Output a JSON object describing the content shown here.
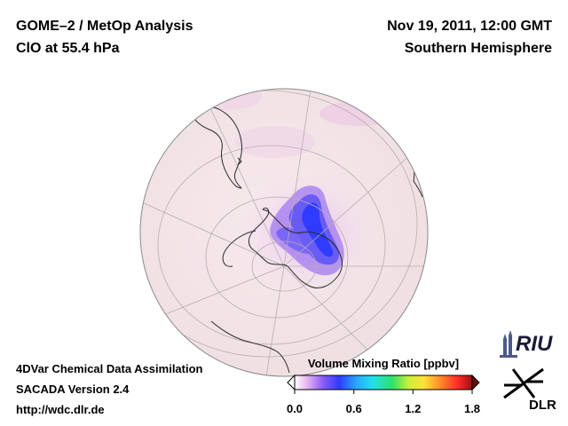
{
  "header": {
    "title_line1": "GOME–2 / MetOp Analysis",
    "title_line2": "ClO at 55.4 hPa",
    "date": "Nov 19, 2011, 12:00 GMT",
    "region": "Southern Hemisphere"
  },
  "footer": {
    "line1": "4DVar Chemical Data Assimilation",
    "line2": "SACADA Version 2.4",
    "line3": "http://wdc.dlr.de"
  },
  "colorbar": {
    "title": "Volume Mixing Ratio [ppbv]",
    "ticks": [
      "0.0",
      "0.6",
      "1.2",
      "1.8"
    ],
    "min": 0.0,
    "max": 1.8,
    "colors": [
      "#ffffff",
      "#e8b4f0",
      "#8a5cf5",
      "#2f3cff",
      "#2aa8ff",
      "#22e0e8",
      "#2ee06a",
      "#c8f03a",
      "#ffe03a",
      "#ff8c2a",
      "#ff2a2a",
      "#9c1010"
    ]
  },
  "logos": {
    "riu": "RIU",
    "dlr": "DLR"
  },
  "map": {
    "projection": "orthographic",
    "hemisphere": "Southern Hemisphere",
    "background_color": "#f3e5e8",
    "ocean_tint": "#f7e6ee"
  }
}
